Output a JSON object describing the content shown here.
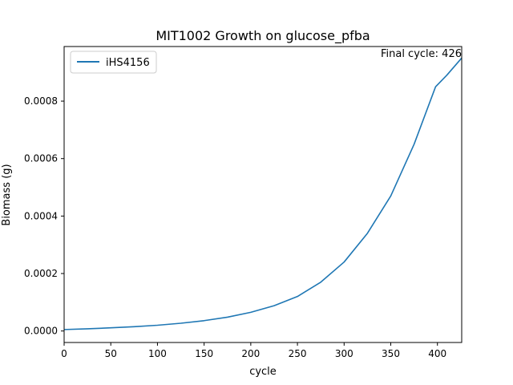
{
  "chart_data": {
    "type": "line",
    "title": "MIT1002 Growth on glucose_pfba",
    "xlabel": "cycle",
    "ylabel": "Biomass (g)",
    "xlim": [
      0,
      426
    ],
    "ylim": [
      -4e-05,
      0.00099
    ],
    "xticks": [
      0,
      50,
      100,
      150,
      200,
      250,
      300,
      350,
      400
    ],
    "xtick_labels": [
      "0",
      "50",
      "100",
      "150",
      "200",
      "250",
      "300",
      "350",
      "400"
    ],
    "yticks": [
      0,
      0.0002,
      0.0004,
      0.0006,
      0.0008
    ],
    "ytick_labels": [
      "0.0000",
      "0.0002",
      "0.0004",
      "0.0006",
      "0.0008"
    ],
    "grid": false,
    "legend": {
      "position": "top-left"
    },
    "annotation": {
      "text": "Final cycle: 426",
      "position": "top-right"
    },
    "series": [
      {
        "name": "iHS4156",
        "color": "#1f77b4",
        "x": [
          0,
          25,
          50,
          75,
          100,
          125,
          150,
          175,
          200,
          225,
          250,
          275,
          300,
          325,
          350,
          375,
          398,
          410,
          426
        ],
        "y": [
          5e-06,
          7.5e-06,
          1.1e-05,
          1.5e-05,
          2e-05,
          2.7e-05,
          3.6e-05,
          4.8e-05,
          6.5e-05,
          8.8e-05,
          0.00012,
          0.00017,
          0.00024,
          0.00034,
          0.00047,
          0.00065,
          0.00085,
          0.00089,
          0.00095
        ]
      }
    ]
  }
}
